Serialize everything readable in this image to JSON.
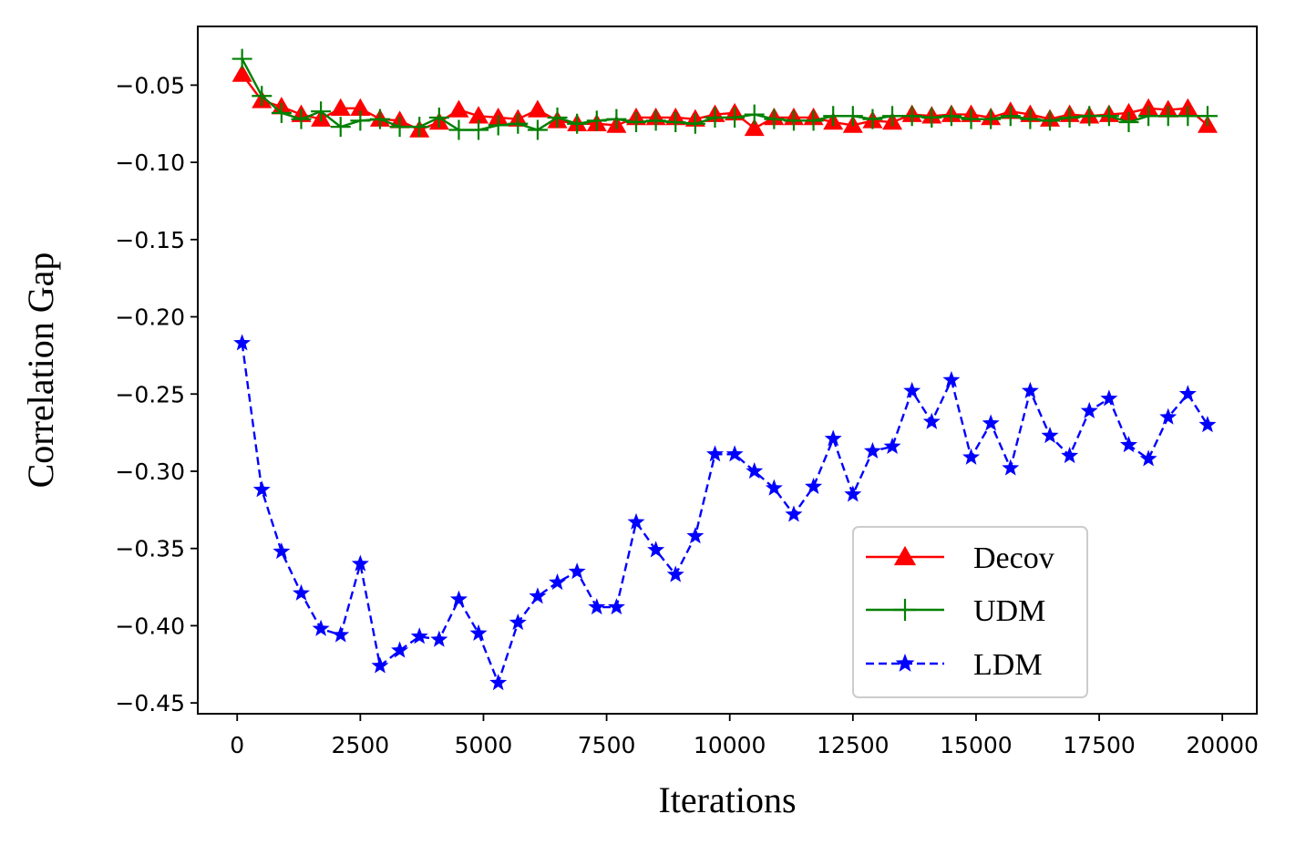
{
  "chart_data": {
    "type": "line",
    "title": "",
    "xlabel": "Iterations",
    "ylabel": "Correlation Gap",
    "xlim": [
      -800,
      20700
    ],
    "ylim": [
      -0.457,
      -0.012
    ],
    "xticks": [
      0,
      2500,
      5000,
      7500,
      10000,
      12500,
      15000,
      17500,
      20000
    ],
    "xtick_labels": [
      "0",
      "2500",
      "5000",
      "7500",
      "10000",
      "12500",
      "15000",
      "17500",
      "20000"
    ],
    "yticks": [
      -0.05,
      -0.1,
      -0.15,
      -0.2,
      -0.25,
      -0.3,
      -0.35,
      -0.4,
      -0.45
    ],
    "ytick_labels": [
      "−0.05",
      "−0.10",
      "−0.15",
      "−0.20",
      "−0.25",
      "−0.30",
      "−0.35",
      "−0.40",
      "−0.45"
    ],
    "grid": false,
    "legend_position": "lower-right",
    "x": [
      100,
      500,
      900,
      1300,
      1700,
      2100,
      2500,
      2900,
      3300,
      3700,
      4100,
      4500,
      4900,
      5300,
      5700,
      6100,
      6500,
      6900,
      7300,
      7700,
      8100,
      8500,
      8900,
      9300,
      9700,
      10100,
      10500,
      10900,
      11300,
      11700,
      12100,
      12500,
      12900,
      13300,
      13700,
      14100,
      14500,
      14900,
      15300,
      15700,
      16100,
      16500,
      16900,
      17300,
      17700,
      18100,
      18500,
      18900,
      19300,
      19700
    ],
    "series": [
      {
        "name": "Decov",
        "color": "#ff0000",
        "line_style": "solid",
        "marker": "triangle-up",
        "values": [
          -0.043,
          -0.06,
          -0.064,
          -0.069,
          -0.072,
          -0.065,
          -0.065,
          -0.072,
          -0.073,
          -0.079,
          -0.074,
          -0.066,
          -0.07,
          -0.071,
          -0.072,
          -0.066,
          -0.073,
          -0.075,
          -0.075,
          -0.076,
          -0.071,
          -0.071,
          -0.071,
          -0.072,
          -0.069,
          -0.068,
          -0.078,
          -0.071,
          -0.071,
          -0.071,
          -0.074,
          -0.076,
          -0.073,
          -0.074,
          -0.069,
          -0.07,
          -0.069,
          -0.069,
          -0.071,
          -0.067,
          -0.069,
          -0.072,
          -0.069,
          -0.07,
          -0.069,
          -0.068,
          -0.065,
          -0.066,
          -0.065,
          -0.076
        ]
      },
      {
        "name": "UDM",
        "color": "#008000",
        "line_style": "solid",
        "marker": "plus",
        "values": [
          -0.033,
          -0.057,
          -0.068,
          -0.072,
          -0.067,
          -0.077,
          -0.073,
          -0.072,
          -0.077,
          -0.077,
          -0.071,
          -0.079,
          -0.079,
          -0.076,
          -0.075,
          -0.079,
          -0.071,
          -0.075,
          -0.073,
          -0.072,
          -0.074,
          -0.073,
          -0.074,
          -0.075,
          -0.071,
          -0.071,
          -0.069,
          -0.072,
          -0.073,
          -0.073,
          -0.07,
          -0.07,
          -0.072,
          -0.07,
          -0.07,
          -0.071,
          -0.07,
          -0.072,
          -0.072,
          -0.07,
          -0.072,
          -0.073,
          -0.071,
          -0.07,
          -0.07,
          -0.074,
          -0.07,
          -0.07,
          -0.07,
          -0.07
        ]
      },
      {
        "name": "LDM",
        "color": "#0000ff",
        "line_style": "dashed",
        "marker": "star",
        "values": [
          -0.217,
          -0.312,
          -0.352,
          -0.379,
          -0.402,
          -0.406,
          -0.36,
          -0.426,
          -0.416,
          -0.407,
          -0.409,
          -0.383,
          -0.405,
          -0.437,
          -0.398,
          -0.381,
          -0.372,
          -0.365,
          -0.388,
          -0.388,
          -0.333,
          -0.351,
          -0.367,
          -0.342,
          -0.289,
          -0.289,
          -0.3,
          -0.311,
          -0.328,
          -0.31,
          -0.279,
          -0.315,
          -0.287,
          -0.284,
          -0.248,
          -0.268,
          -0.241,
          -0.291,
          -0.269,
          -0.298,
          -0.248,
          -0.277,
          -0.29,
          -0.261,
          -0.253,
          -0.283,
          -0.292,
          -0.265,
          -0.25,
          -0.27
        ]
      }
    ]
  }
}
